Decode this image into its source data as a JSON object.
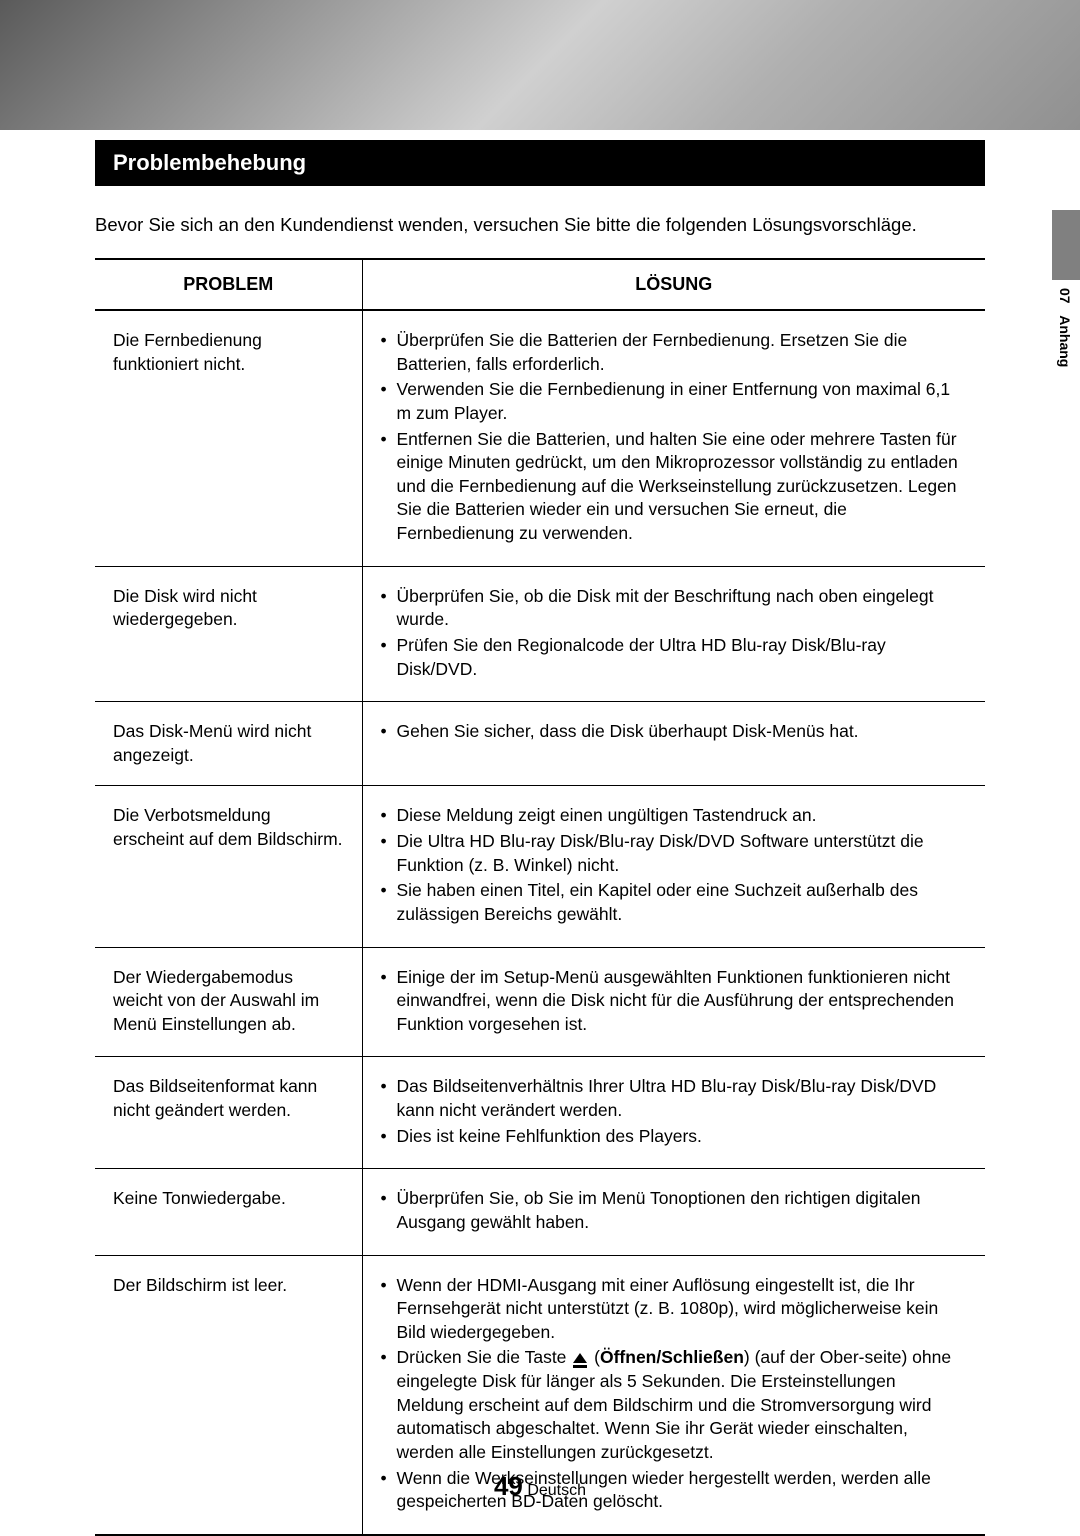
{
  "section_title": "Problembehebung",
  "intro": "Bevor Sie sich an den Kundendienst wenden, versuchen Sie bitte die folgenden Lösungsvorschläge.",
  "side": {
    "chapter": "07",
    "label": "Anhang"
  },
  "table": {
    "headers": {
      "problem": "PROBLEM",
      "solution": "LÖSUNG"
    },
    "rows": [
      {
        "problem": "Die Fernbedienung funktioniert nicht.",
        "solutions": [
          "Überprüfen Sie die Batterien der Fernbedienung. Ersetzen Sie die Batterien, falls erforderlich.",
          "Verwenden Sie die Fernbedienung in einer Entfernung von maximal 6,1 m zum Player.",
          "Entfernen Sie die Batterien, und halten Sie eine oder mehrere Tasten für einige Minuten gedrückt, um den Mikroprozessor vollständig zu entladen und die Fernbedienung auf die Werkseinstellung zurückzusetzen. Legen Sie die Batterien wieder ein und versuchen Sie erneut, die Fernbedienung zu verwenden."
        ]
      },
      {
        "problem": "Die Disk wird nicht wiedergegeben.",
        "solutions": [
          "Überprüfen Sie, ob die Disk mit der Beschriftung nach oben eingelegt wurde.",
          "Prüfen Sie den Regionalcode der Ultra HD Blu-ray Disk/Blu-ray Disk/DVD."
        ]
      },
      {
        "problem": "Das Disk-Menü wird nicht angezeigt.",
        "solutions": [
          "Gehen Sie sicher, dass die Disk überhaupt Disk-Menüs hat."
        ]
      },
      {
        "problem": "Die Verbotsmeldung erscheint auf dem Bildschirm.",
        "solutions": [
          "Diese Meldung zeigt einen ungültigen Tastendruck an.",
          "Die Ultra HD Blu-ray Disk/Blu-ray Disk/DVD Software unterstützt die Funktion (z. B. Winkel) nicht.",
          "Sie haben einen Titel, ein Kapitel oder eine Suchzeit außerhalb des zulässigen Bereichs gewählt."
        ]
      },
      {
        "problem": "Der Wiedergabemodus weicht von der Auswahl im Menü Einstellungen ab.",
        "solutions": [
          "Einige der im Setup-Menü ausgewählten Funktionen funktionieren nicht einwandfrei, wenn die Disk nicht für die Ausführung der entsprechenden Funktion vorgesehen ist."
        ]
      },
      {
        "problem": "Das Bildseitenformat kann nicht geändert werden.",
        "solutions": [
          "Das Bildseitenverhältnis Ihrer Ultra HD Blu-ray Disk/Blu-ray Disk/DVD kann nicht verändert werden.",
          "Dies ist keine Fehlfunktion des Players."
        ]
      },
      {
        "problem": "Keine Tonwiedergabe.",
        "solutions": [
          "Überprüfen Sie, ob Sie im Menü Tonoptionen den richtigen digitalen Ausgang gewählt haben."
        ]
      },
      {
        "problem": "Der Bildschirm ist leer.",
        "solutions_special": {
          "s1": "Wenn der HDMI-Ausgang mit einer Auflösung eingestellt ist, die Ihr Fernsehgerät nicht unterstützt (z. B. 1080p), wird möglicherweise kein Bild wiedergegeben.",
          "s2_pre": "Drücken Sie die Taste ",
          "s2_bold": "Öffnen/Schließen",
          "s2_post": ") (auf der Ober-seite) ohne eingelegte Disk für länger als 5 Sekunden. Die Ersteinstellungen Meldung erscheint auf dem Bildschirm und die Stromversorgung wird automatisch abgeschaltet. Wenn Sie ihr Gerät wieder einschalten, werden alle Einstellungen zurückgesetzt.",
          "s3": "Wenn die Werkseinstellungen wieder hergestellt werden, werden alle gespeicherten BD-Daten gelöscht."
        }
      }
    ]
  },
  "footer": {
    "page": "49",
    "lang": "Deutsch"
  }
}
